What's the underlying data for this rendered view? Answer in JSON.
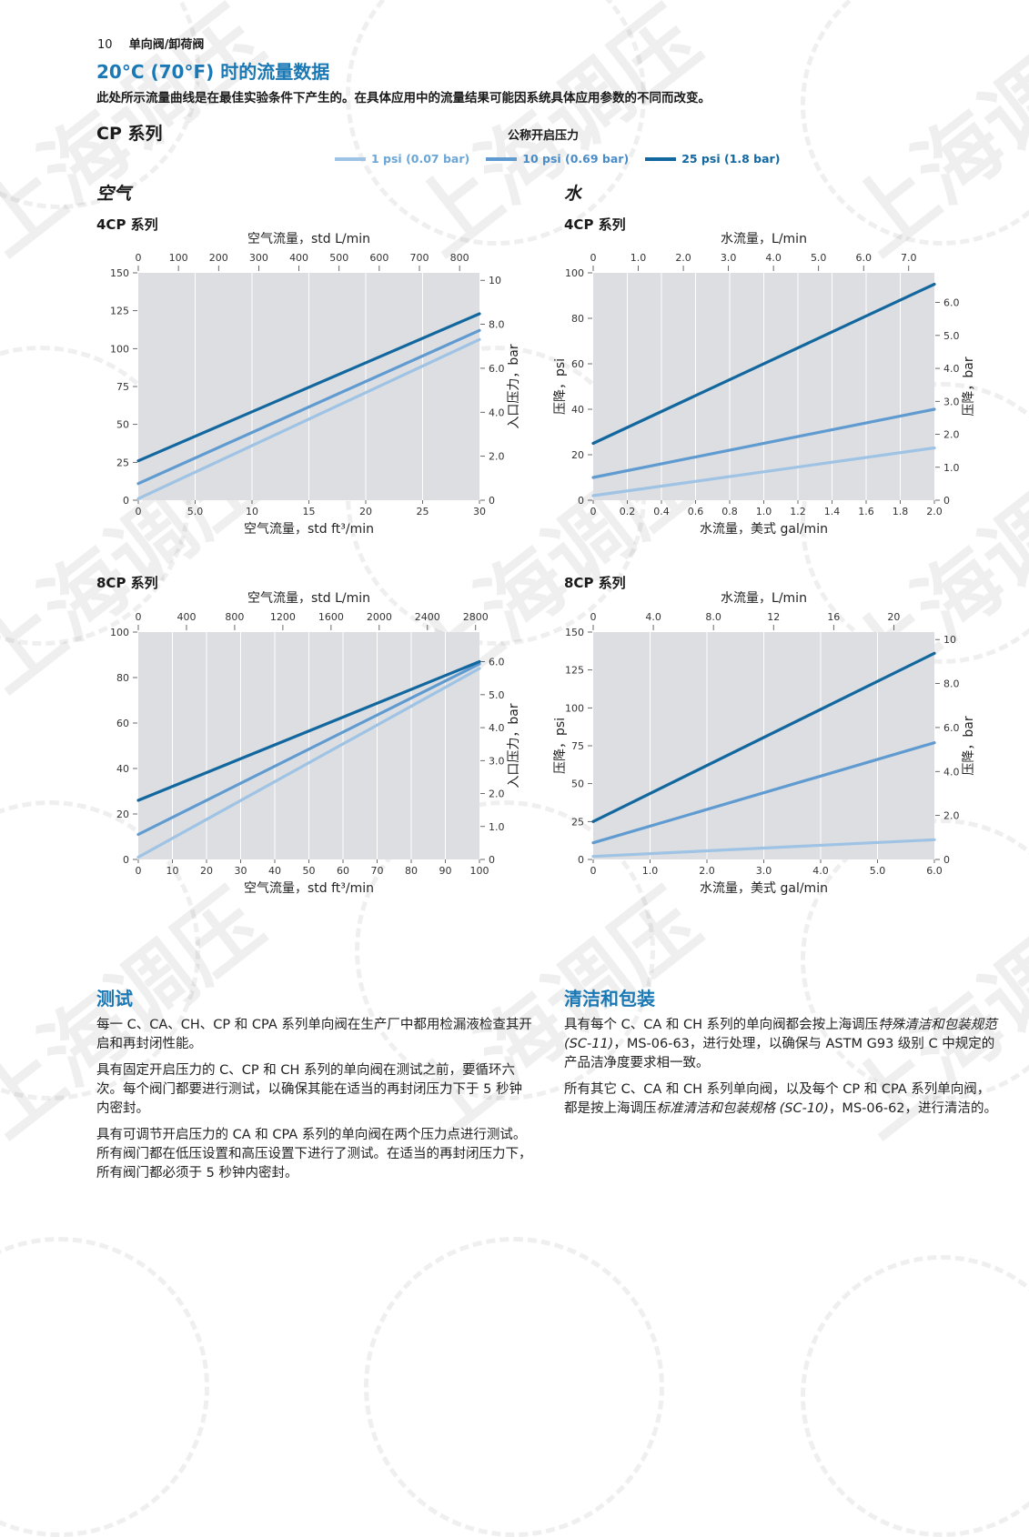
{
  "header": {
    "page_number": "10",
    "section": "单向阀/卸荷阀"
  },
  "title": "20°C (70°F) 时的流量数据",
  "intro": "此处所示流量曲线是在最佳实验条件下产生的。在具体应用中的流量结果可能因系统具体应用参数的不同而改变。",
  "series_title": "CP 系列",
  "legend": {
    "title": "公称开启压力",
    "items": [
      {
        "label": "1 psi (0.07 bar)",
        "color": "#9fc3e4"
      },
      {
        "label": "10 psi (0.69 bar)",
        "color": "#5f9bd1"
      },
      {
        "label": "25 psi (1.8 bar)",
        "color": "#12679f"
      }
    ]
  },
  "sections": {
    "air": "空气",
    "water": "水"
  },
  "colors": {
    "plot_bg": "#dcdee1",
    "accent": "#1a78b4"
  },
  "chart_data": [
    {
      "type": "line",
      "title": "4CP 系列",
      "xlabel": "空气流量，std ft³/min",
      "x2label": "空气流量，std L/min",
      "ylabel": "",
      "y2label": "入口压力，bar",
      "xlim": [
        0,
        30
      ],
      "ylim": [
        0,
        150
      ],
      "xticks": [
        "0",
        "5.0",
        "10",
        "15",
        "20",
        "25",
        "30"
      ],
      "xtick_values": [
        0,
        5,
        10,
        15,
        20,
        25,
        30
      ],
      "x2lim": [
        0,
        849.5
      ],
      "x2ticks": [
        "0",
        "100",
        "200",
        "300",
        "400",
        "500",
        "600",
        "700",
        "800"
      ],
      "x2tick_values": [
        0,
        100,
        200,
        300,
        400,
        500,
        600,
        700,
        800
      ],
      "yticks": [
        "0",
        "25",
        "50",
        "75",
        "100",
        "125",
        "150"
      ],
      "ytick_values": [
        0,
        25,
        50,
        75,
        100,
        125,
        150
      ],
      "y2lim": [
        0,
        10.34
      ],
      "y2ticks": [
        "0",
        "2.0",
        "4.0",
        "6.0",
        "8.0",
        "10"
      ],
      "y2tick_values": [
        0,
        2,
        4,
        6,
        8,
        10
      ],
      "series": [
        {
          "name": "1 psi (0.07 bar)",
          "x": [
            0,
            30
          ],
          "y": [
            1,
            106
          ]
        },
        {
          "name": "10 psi (0.69 bar)",
          "x": [
            0,
            30
          ],
          "y": [
            11,
            112
          ]
        },
        {
          "name": "25 psi (1.8 bar)",
          "x": [
            0,
            30
          ],
          "y": [
            26,
            123
          ]
        }
      ]
    },
    {
      "type": "line",
      "title": "4CP 系列",
      "xlabel": "水流量，美式 gal/min",
      "x2label": "水流量，L/min",
      "ylabel": "压降，psi",
      "y2label": "压降，bar",
      "xlim": [
        0,
        2.0
      ],
      "ylim": [
        0,
        100
      ],
      "xticks": [
        "0",
        "0.2",
        "0.4",
        "0.6",
        "0.8",
        "1.0",
        "1.2",
        "1.4",
        "1.6",
        "1.8",
        "2.0"
      ],
      "xtick_values": [
        0,
        0.2,
        0.4,
        0.6,
        0.8,
        1.0,
        1.2,
        1.4,
        1.6,
        1.8,
        2.0
      ],
      "x2lim": [
        0,
        7.57
      ],
      "x2ticks": [
        "0",
        "1.0",
        "2.0",
        "3.0",
        "4.0",
        "5.0",
        "6.0",
        "7.0"
      ],
      "x2tick_values": [
        0,
        1,
        2,
        3,
        4,
        5,
        6,
        7
      ],
      "yticks": [
        "0",
        "20",
        "40",
        "60",
        "80",
        "100"
      ],
      "ytick_values": [
        0,
        20,
        40,
        60,
        80,
        100
      ],
      "y2lim": [
        0,
        6.9
      ],
      "y2ticks": [
        "0",
        "1.0",
        "2.0",
        "3.0",
        "4.0",
        "5.0",
        "6.0"
      ],
      "y2tick_values": [
        0,
        1,
        2,
        3,
        4,
        5,
        6
      ],
      "series": [
        {
          "name": "1 psi (0.07 bar)",
          "x": [
            0,
            2.0
          ],
          "y": [
            2,
            23
          ]
        },
        {
          "name": "10 psi (0.69 bar)",
          "x": [
            0,
            2.0
          ],
          "y": [
            10,
            40
          ]
        },
        {
          "name": "25 psi (1.8 bar)",
          "x": [
            0,
            2.0
          ],
          "y": [
            25,
            95
          ]
        }
      ]
    },
    {
      "type": "line",
      "title": "8CP 系列",
      "xlabel": "空气流量，std ft³/min",
      "x2label": "空气流量，std L/min",
      "ylabel": "",
      "y2label": "入口压力，bar",
      "xlim": [
        0,
        100
      ],
      "ylim": [
        0,
        100
      ],
      "xticks": [
        "0",
        "10",
        "20",
        "30",
        "40",
        "50",
        "60",
        "70",
        "80",
        "90",
        "100"
      ],
      "xtick_values": [
        0,
        10,
        20,
        30,
        40,
        50,
        60,
        70,
        80,
        90,
        100
      ],
      "x2lim": [
        0,
        2832
      ],
      "x2ticks": [
        "0",
        "400",
        "800",
        "1200",
        "1600",
        "2000",
        "2400",
        "2800"
      ],
      "x2tick_values": [
        0,
        400,
        800,
        1200,
        1600,
        2000,
        2400,
        2800
      ],
      "yticks": [
        "0",
        "20",
        "40",
        "60",
        "80",
        "100"
      ],
      "ytick_values": [
        0,
        20,
        40,
        60,
        80,
        100
      ],
      "y2lim": [
        0,
        6.9
      ],
      "y2ticks": [
        "0",
        "1.0",
        "2.0",
        "3.0",
        "4.0",
        "5.0",
        "6.0"
      ],
      "y2tick_values": [
        0,
        1,
        2,
        3,
        4,
        5,
        6
      ],
      "series": [
        {
          "name": "1 psi (0.07 bar)",
          "x": [
            0,
            100
          ],
          "y": [
            1,
            84
          ]
        },
        {
          "name": "10 psi (0.69 bar)",
          "x": [
            0,
            100
          ],
          "y": [
            11,
            86
          ]
        },
        {
          "name": "25 psi (1.8 bar)",
          "x": [
            0,
            100
          ],
          "y": [
            26,
            87
          ]
        }
      ]
    },
    {
      "type": "line",
      "title": "8CP 系列",
      "xlabel": "水流量，美式 gal/min",
      "x2label": "水流量，L/min",
      "ylabel": "压降，psi",
      "y2label": "压降，bar",
      "xlim": [
        0,
        6.0
      ],
      "ylim": [
        0,
        150
      ],
      "xticks": [
        "0",
        "1.0",
        "2.0",
        "3.0",
        "4.0",
        "5.0",
        "6.0"
      ],
      "xtick_values": [
        0,
        1,
        2,
        3,
        4,
        5,
        6
      ],
      "x2lim": [
        0,
        22.7
      ],
      "x2ticks": [
        "0",
        "4.0",
        "8.0",
        "12",
        "16",
        "20"
      ],
      "x2tick_values": [
        0,
        4,
        8,
        12,
        16,
        20
      ],
      "yticks": [
        "0",
        "25",
        "50",
        "75",
        "100",
        "125",
        "150"
      ],
      "ytick_values": [
        0,
        25,
        50,
        75,
        100,
        125,
        150
      ],
      "y2lim": [
        0,
        10.34
      ],
      "y2ticks": [
        "0",
        "2.0",
        "4.0",
        "6.0",
        "8.0",
        "10"
      ],
      "y2tick_values": [
        0,
        2,
        4,
        6,
        8,
        10
      ],
      "series": [
        {
          "name": "1 psi (0.07 bar)",
          "x": [
            0,
            6.0
          ],
          "y": [
            2,
            13
          ]
        },
        {
          "name": "10 psi (0.69 bar)",
          "x": [
            0,
            6.0
          ],
          "y": [
            11,
            77
          ]
        },
        {
          "name": "25 psi (1.8 bar)",
          "x": [
            0,
            6.0
          ],
          "y": [
            25,
            136
          ]
        }
      ]
    }
  ],
  "testing": {
    "heading": "测试",
    "paragraphs": [
      "每一 C、CA、CH、CP 和 CPA 系列单向阀在生产厂中都用检漏液检查其开启和再封闭性能。",
      "具有固定开启压力的 C、CP 和 CH 系列的单向阀在测试之前，要循环六次。每个阀门都要进行测试，以确保其能在适当的再封闭压力下于 5 秒钟内密封。",
      "具有可调节开启压力的 CA 和 CPA 系列的单向阀在两个压力点进行测试。所有阀门都在低压设置和高压设置下进行了测试。在适当的再封闭压力下，所有阀门都必须于 5 秒钟内密封。"
    ]
  },
  "cleaning": {
    "heading": "清洁和包装",
    "p1_a": "具有每个 C、CA 和 CH 系列的单向阀都会按上海调压",
    "p1_em": "特殊清洁和包装规范 (SC-11)",
    "p1_b": "，MS-06-63，进行处理，以确保与 ASTM G93 级别 C 中规定的产品洁净度要求相一致。",
    "p2_a": "所有其它 C、CA 和 CH 系列单向阀，以及每个 CP 和 CPA 系列单向阀，都是按上海调压",
    "p2_em": "标准清洁和包装规格 (SC-10)",
    "p2_b": "，MS-06-62，进行清洁的。"
  },
  "watermark": "上海调压"
}
